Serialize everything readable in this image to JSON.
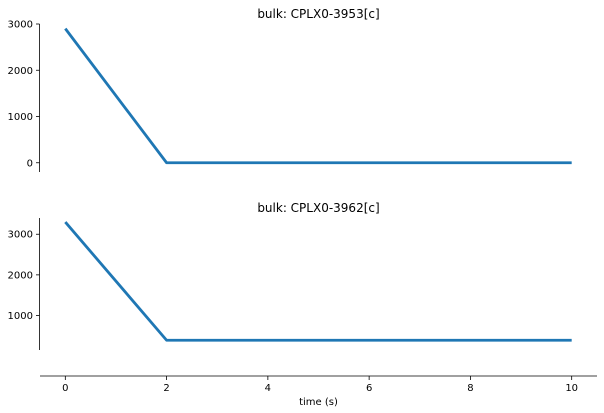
{
  "chart_data": [
    {
      "type": "line",
      "title": "bulk: CPLX0-3953[c]",
      "x": [
        0,
        2,
        10
      ],
      "series": [
        {
          "values": [
            2900,
            0,
            0
          ],
          "color": "#1f77b4"
        }
      ],
      "yticks": [
        0,
        1000,
        2000,
        3000
      ],
      "ylim": [
        -200,
        3000
      ],
      "xlim": [
        -0.5,
        10.5
      ],
      "grid": false
    },
    {
      "type": "line",
      "title": "bulk: CPLX0-3962[c]",
      "x": [
        0,
        2,
        10
      ],
      "series": [
        {
          "values": [
            3300,
            390,
            390
          ],
          "color": "#1f77b4"
        }
      ],
      "yticks": [
        1000,
        2000,
        3000
      ],
      "ylim": [
        150,
        3400
      ],
      "xlim": [
        -0.5,
        10.5
      ],
      "xticks": [
        0,
        2,
        4,
        6,
        8,
        10
      ],
      "xlabel": "time (s)",
      "grid": false
    }
  ]
}
